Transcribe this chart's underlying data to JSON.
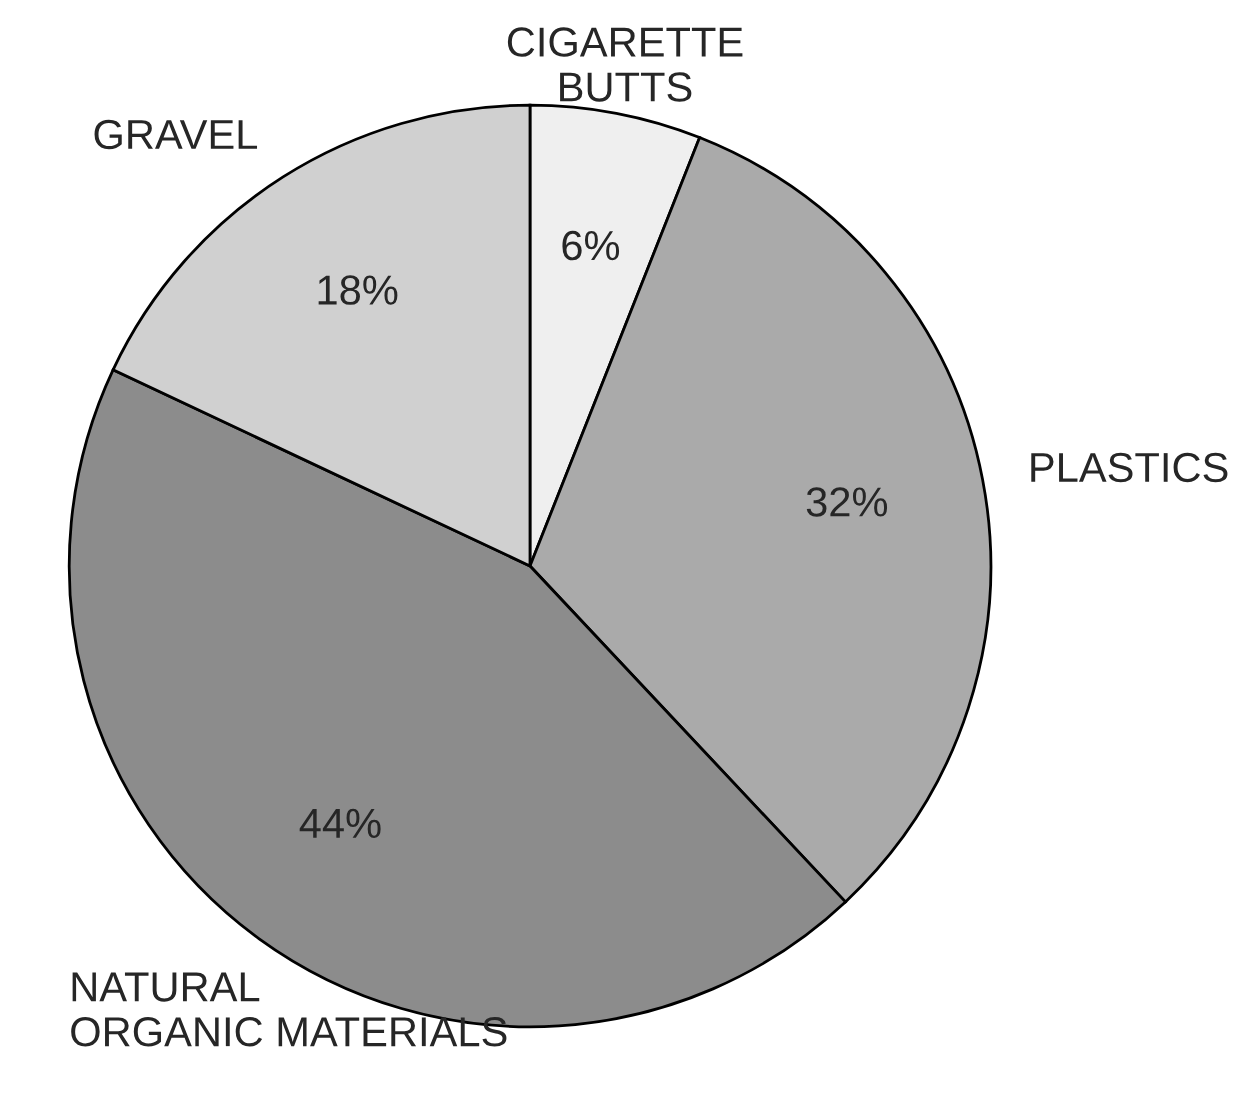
{
  "chart_data": {
    "type": "pie",
    "categories": [
      "CIGARETTE\nBUTTS",
      "PLASTICS",
      "NATURAL\nORGANIC MATERIALS",
      "GRAVEL"
    ],
    "values": [
      6,
      32,
      44,
      18
    ],
    "value_labels": [
      "6%",
      "32%",
      "44%",
      "18%"
    ],
    "colors": [
      "#efefef",
      "#aaaaaa",
      "#8c8c8c",
      "#d0d0d0"
    ],
    "legend": false
  }
}
